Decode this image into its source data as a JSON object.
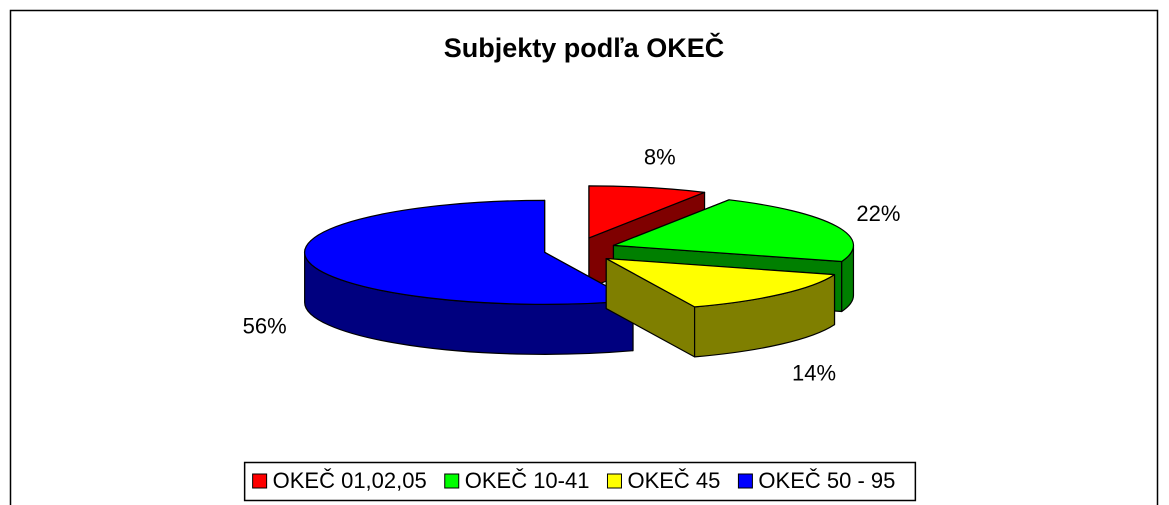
{
  "chart_data": {
    "type": "pie3d",
    "title": "Subjekty podľa OKEČ",
    "categories": [
      "OKEČ 01,02,05",
      "OKEČ 10-41",
      "OKEČ 45",
      "OKEČ 50 - 95"
    ],
    "values": [
      8,
      22,
      14,
      56
    ],
    "value_labels": [
      "8%",
      "22%",
      "14%",
      "56%"
    ],
    "colors": [
      "#ff0000",
      "#00ff00",
      "#ffff00",
      "#0000ff"
    ],
    "legend": "bottom"
  }
}
